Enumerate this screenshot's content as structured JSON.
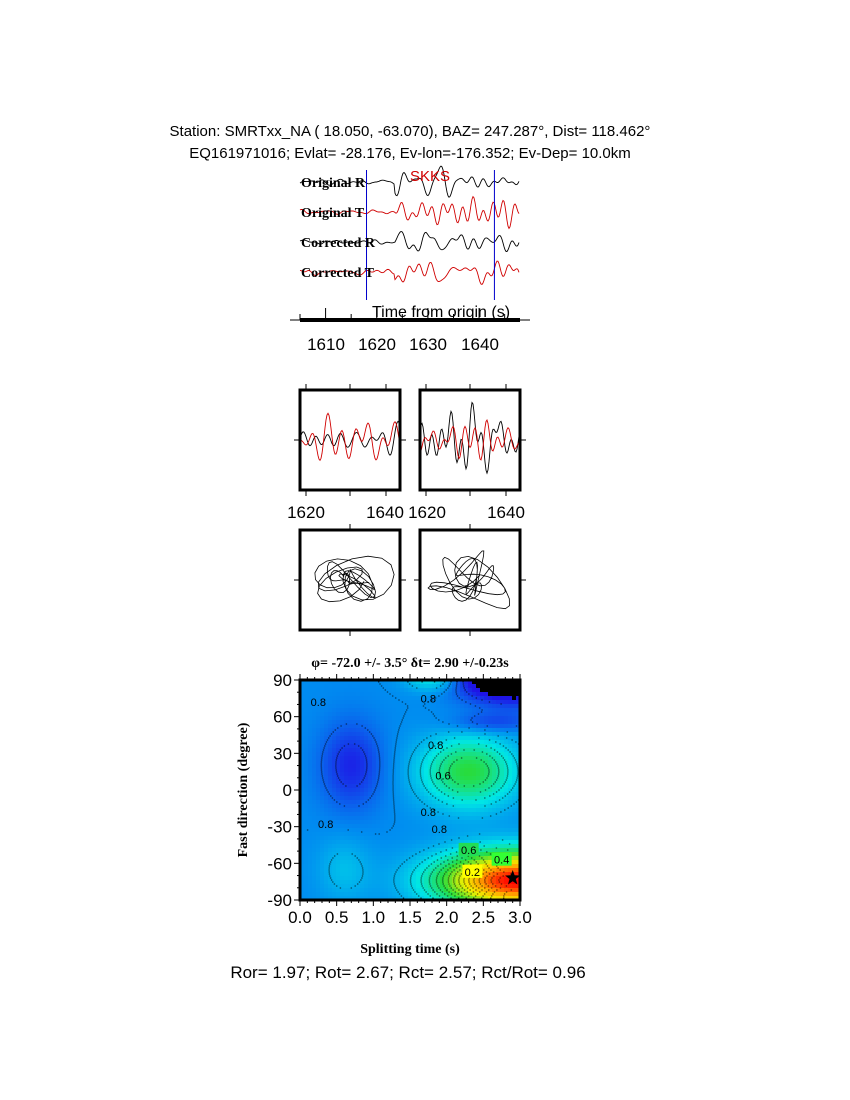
{
  "header": {
    "line1": "Station: SMRTxx_NA (  18.050,  -63.070), BAZ=  247.287°, Dist=  118.462°",
    "line2": "EQ161971016; Evlat= -28.176, Ev-lon=-176.352; Ev-Dep= 10.0km"
  },
  "chart_data": [
    {
      "type": "line",
      "panel": "seismograms",
      "phase_label": "SKKS",
      "trace_labels": [
        "Original R",
        "Original T",
        "Corrected R",
        "Corrected T"
      ],
      "xlabel": "Time from origin (s)",
      "xticks": [
        "1610",
        "1620",
        "1630",
        "1640"
      ],
      "xlim": [
        1605,
        1648
      ],
      "window_markers_s": [
        1618,
        1643
      ],
      "colors": {
        "R": "#000000",
        "T": "#d00000",
        "marker": "#0000cc",
        "phase": "#d00000"
      }
    },
    {
      "type": "line",
      "panel": "windowed-waveforms",
      "xticks_left": [
        "1620",
        "1640"
      ],
      "xticks_right": [
        "1620",
        "1640"
      ]
    },
    {
      "type": "line",
      "panel": "particle-motion"
    },
    {
      "type": "heatmap",
      "panel": "energy-grid",
      "title": "φ= -72.0 +/- 3.5° δt= 2.90 +/-0.23s",
      "xlabel": "Splitting time (s)",
      "ylabel": "Fast direction (degree)",
      "xlim": [
        0,
        3
      ],
      "ylim": [
        -90,
        90
      ],
      "xticks": [
        "0.0",
        "0.5",
        "1.0",
        "1.5",
        "2.0",
        "2.5",
        "3.0"
      ],
      "yticks": [
        "90",
        "60",
        "30",
        "0",
        "-30",
        "-60",
        "-90"
      ],
      "contour_labels": [
        "0.8",
        "0.8",
        "0.8",
        "0.6",
        "0.8",
        "0.8",
        "0.8",
        "0.6",
        "0.4",
        "0.2"
      ],
      "best_fit": {
        "dt": 2.9,
        "phi": -72.0
      }
    }
  ],
  "footer": "Ror= 1.97; Rot= 2.67; Rct= 2.57; Rct/Rot= 0.96"
}
